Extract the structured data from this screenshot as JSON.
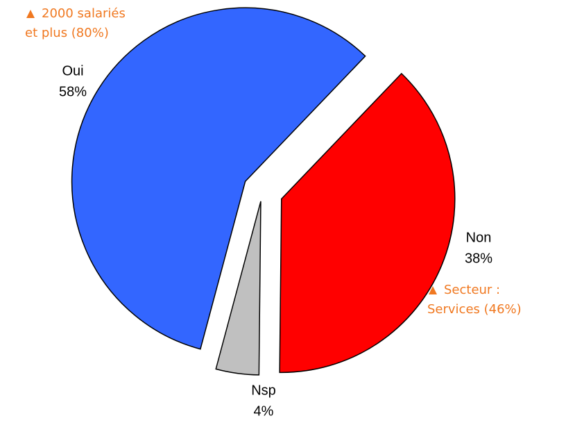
{
  "chart_data": {
    "type": "pie",
    "categories": [
      "Oui",
      "Non",
      "Nsp"
    ],
    "values": [
      58,
      38,
      4
    ],
    "value_labels": [
      "58%",
      "38%",
      "4%"
    ],
    "colors": [
      "#3366ff",
      "#ff0000",
      "#c0c0c0"
    ],
    "annotations": [
      {
        "lines": [
          "2000 salariés",
          "et plus (80%)"
        ],
        "color": "#f07820"
      },
      {
        "lines": [
          "Secteur :",
          "Services (46%)"
        ],
        "color": "#f07820"
      }
    ]
  }
}
